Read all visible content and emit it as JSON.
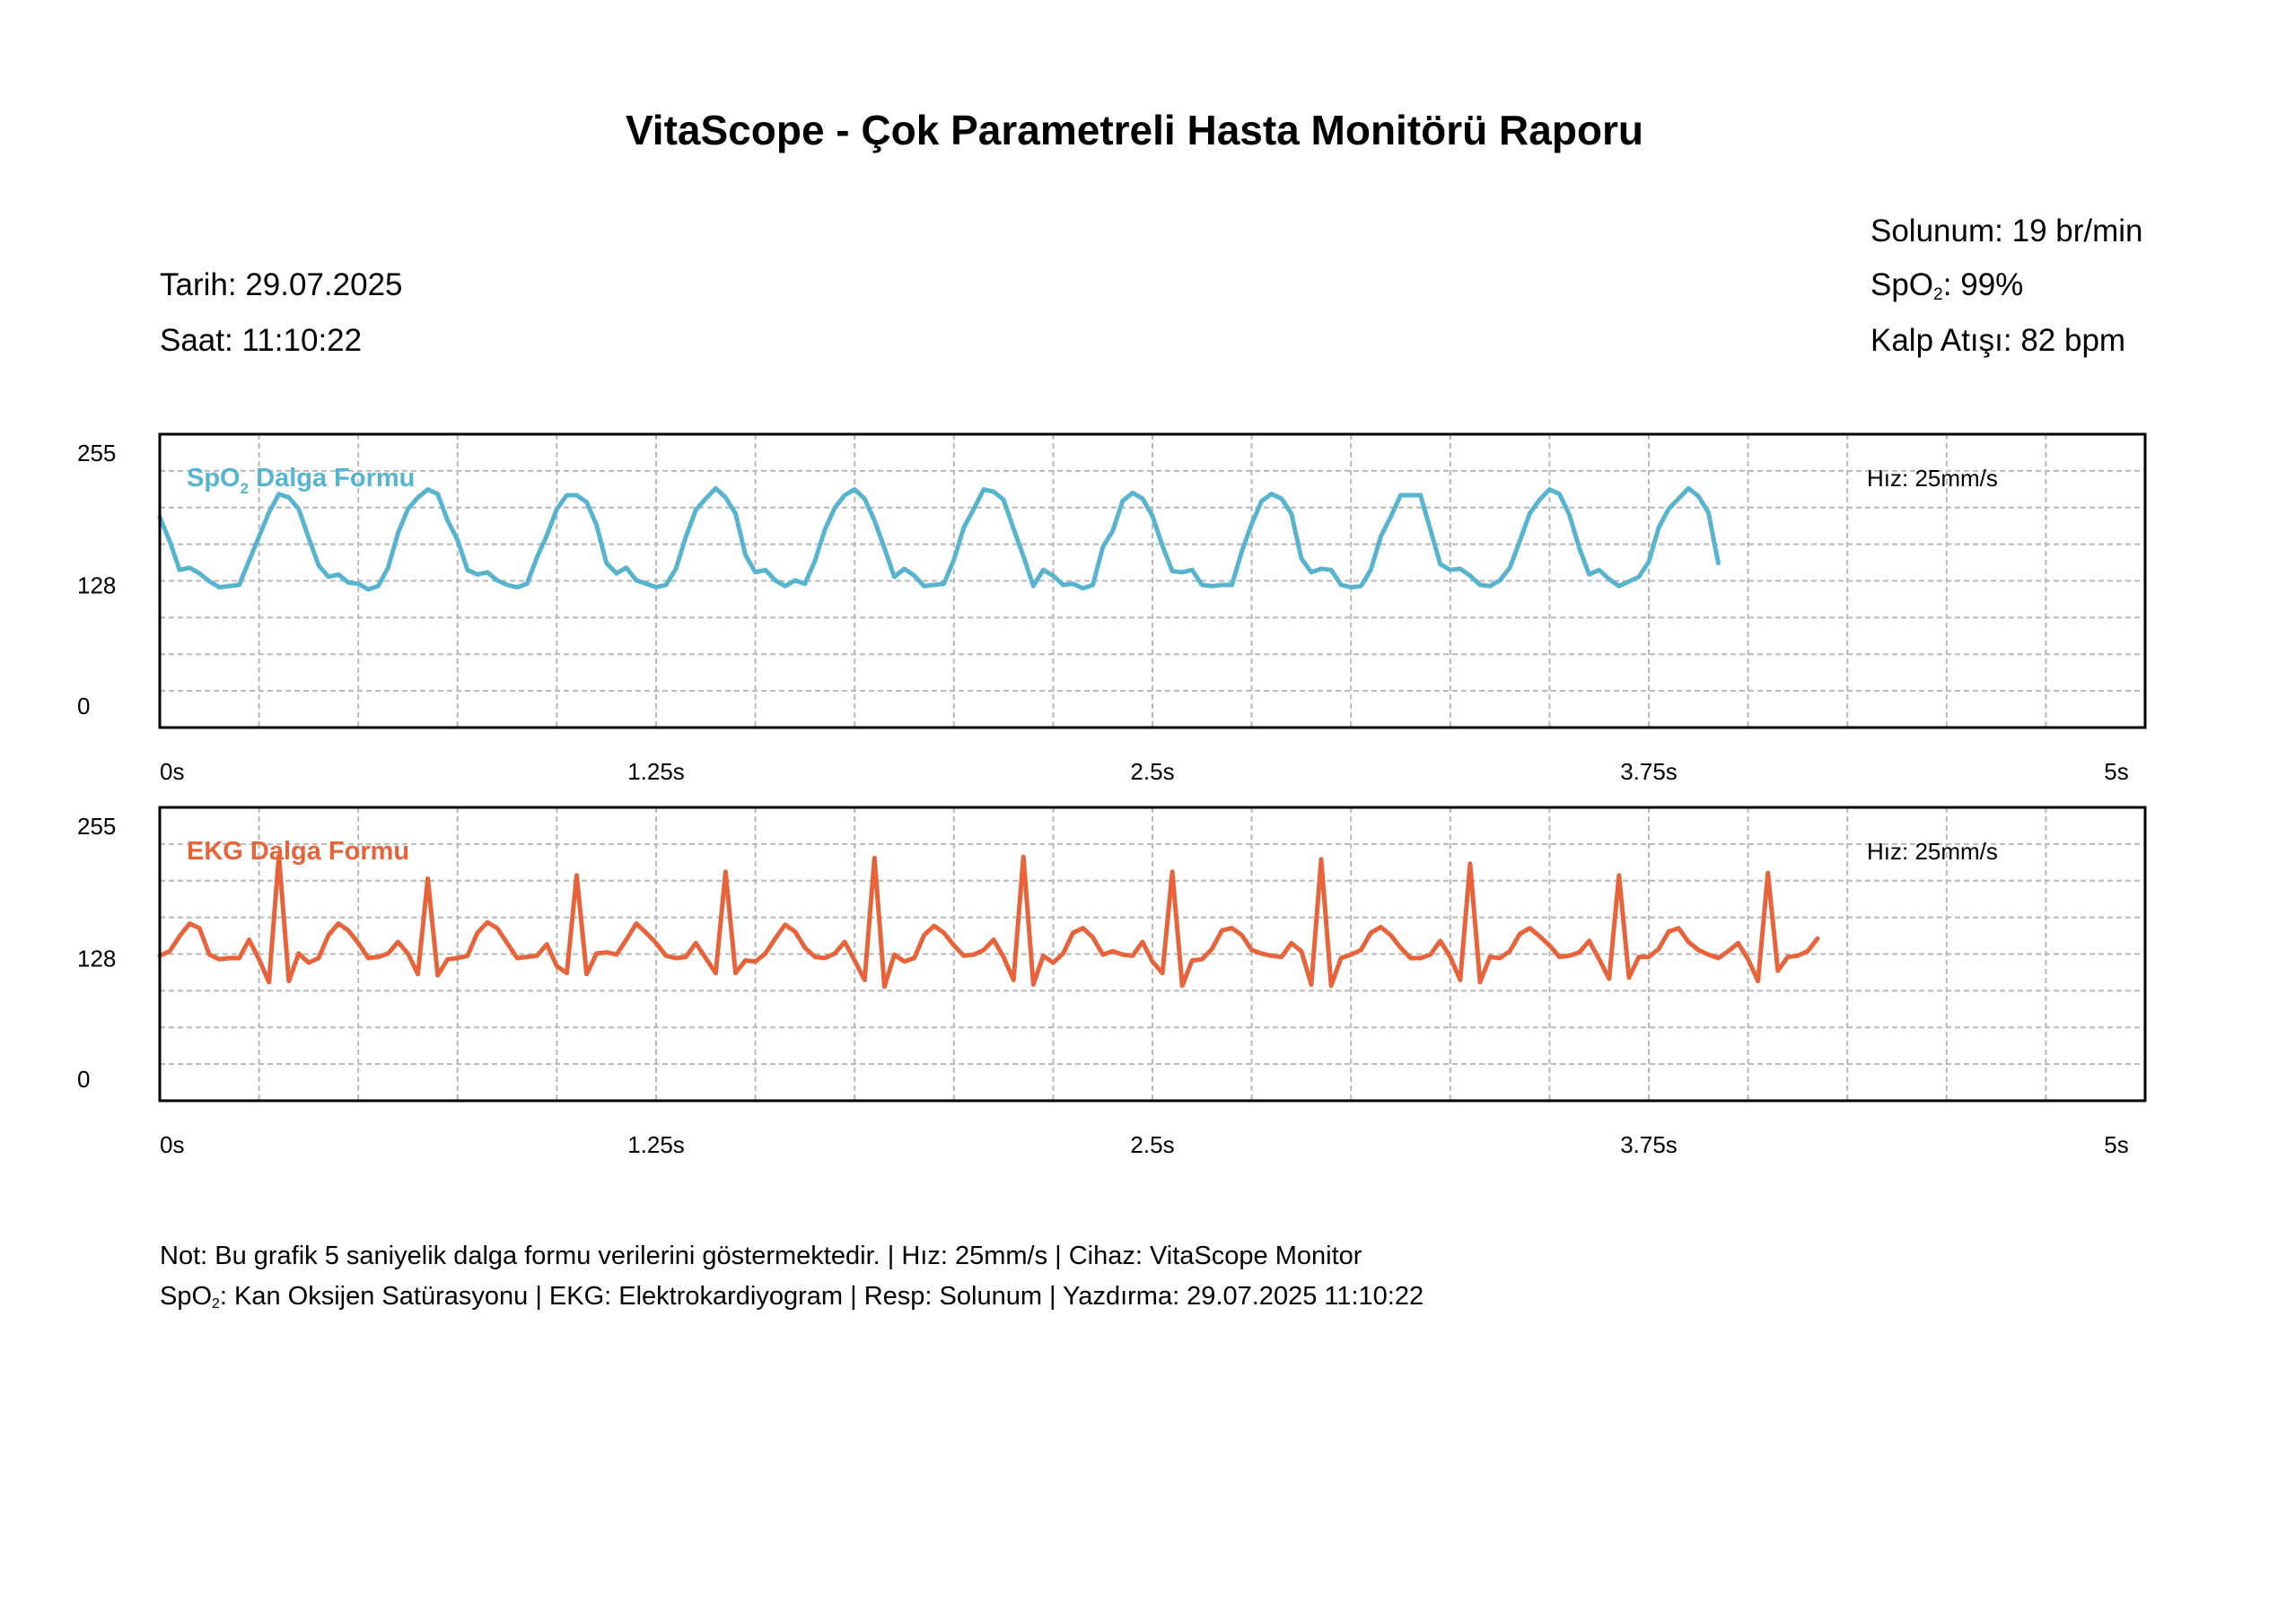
{
  "title": "VitaScope - Çok Parametreli Hasta Monitörü Raporu",
  "info_left": {
    "date_label": "Tarih:",
    "date": "29.07.2025",
    "time_label": "Saat:",
    "time": "11:10:22"
  },
  "info_right": {
    "resp_label": "Solunum:",
    "resp_value": "19 br/min",
    "spo2_prefix": "SpO",
    "spo2_sub": "2",
    "spo2_suffix": ":",
    "spo2_value": "99%",
    "hr_label": "Kalp Atışı:",
    "hr_value": "82 bpm"
  },
  "colors": {
    "spo2": "#56b4cf",
    "ekg": "#e8633a",
    "grid": "#b8b8b8",
    "frame": "#000000"
  },
  "chart_data": [
    {
      "type": "line",
      "name": "spo2",
      "title_prefix": "SpO",
      "title_sub": "2",
      "title_suffix": " Dalga Formu",
      "speed_label": "Hız: 25mm/s",
      "xlim": [
        0,
        5
      ],
      "ylim": [
        0,
        255
      ],
      "yticks": [
        0,
        128,
        255
      ],
      "xticks": [
        {
          "value": 0,
          "label": "0s"
        },
        {
          "value": 1.25,
          "label": "1.25s"
        },
        {
          "value": 2.5,
          "label": "2.5s"
        },
        {
          "value": 3.75,
          "label": "3.75s"
        },
        {
          "value": 5,
          "label": "5s"
        }
      ],
      "grid": true,
      "sample_interval": 0.025,
      "values": [
        183,
        162,
        137,
        139,
        134,
        127,
        122,
        123,
        124,
        145,
        166,
        187,
        203,
        200,
        190,
        165,
        141,
        131,
        133,
        126,
        125,
        120,
        123,
        139,
        169,
        190,
        200,
        207,
        203,
        180,
        163,
        137,
        133,
        135,
        128,
        124,
        122,
        125,
        148,
        167,
        190,
        202,
        202,
        196,
        176,
        143,
        134,
        139,
        128,
        125,
        122,
        124,
        138,
        166,
        189,
        199,
        208,
        200,
        186,
        150,
        135,
        137,
        128,
        123,
        128,
        125,
        145,
        172,
        191,
        202,
        207,
        199,
        180,
        156,
        131,
        138,
        132,
        123,
        124,
        125,
        146,
        174,
        190,
        207,
        205,
        198,
        173,
        149,
        123,
        137,
        132,
        124,
        125,
        121,
        124,
        157,
        171,
        197,
        204,
        199,
        184,
        158,
        136,
        135,
        137,
        124,
        123,
        124,
        124,
        153,
        177,
        197,
        203,
        199,
        186,
        147,
        135,
        138,
        137,
        124,
        122,
        123,
        137,
        166,
        183,
        202,
        202,
        202,
        172,
        142,
        137,
        138,
        132,
        124,
        123,
        128,
        139,
        162,
        186,
        198,
        207,
        203,
        185,
        156,
        133,
        137,
        129,
        123,
        127,
        131,
        144,
        174,
        190,
        199,
        208,
        201,
        187,
        143
      ]
    },
    {
      "type": "line",
      "name": "ekg",
      "title": "EKG Dalga Formu",
      "speed_label": "Hız: 25mm/s",
      "xlim": [
        0,
        5
      ],
      "ylim": [
        0,
        255
      ],
      "yticks": [
        0,
        128,
        255
      ],
      "xticks": [
        {
          "value": 0,
          "label": "0s"
        },
        {
          "value": 1.25,
          "label": "1.25s"
        },
        {
          "value": 2.5,
          "label": "2.5s"
        },
        {
          "value": 3.75,
          "label": "3.75s"
        },
        {
          "value": 5,
          "label": "5s"
        }
      ],
      "grid": true,
      "sample_interval": 0.025,
      "values": [
        126,
        130,
        143,
        154,
        150,
        127,
        123,
        124,
        124,
        140,
        123,
        103,
        213,
        104,
        128,
        120,
        124,
        144,
        154,
        148,
        137,
        124,
        125,
        128,
        138,
        128,
        110,
        193,
        109,
        123,
        124,
        126,
        146,
        155,
        150,
        137,
        124,
        125,
        126,
        136,
        117,
        111,
        196,
        110,
        128,
        129,
        127,
        140,
        154,
        146,
        137,
        126,
        124,
        125,
        137,
        124,
        111,
        199,
        111,
        122,
        121,
        128,
        141,
        153,
        147,
        133,
        125,
        124,
        128,
        138,
        122,
        105,
        211,
        99,
        127,
        121,
        124,
        144,
        152,
        146,
        135,
        126,
        127,
        131,
        140,
        125,
        105,
        212,
        101,
        126,
        120,
        128,
        146,
        150,
        142,
        127,
        130,
        127,
        126,
        138,
        121,
        111,
        199,
        100,
        122,
        123,
        132,
        148,
        150,
        144,
        131,
        128,
        126,
        125,
        137,
        130,
        101,
        210,
        100,
        124,
        127,
        131,
        146,
        151,
        144,
        133,
        124,
        124,
        127,
        139,
        125,
        105,
        206,
        103,
        125,
        124,
        130,
        145,
        150,
        143,
        135,
        125,
        126,
        129,
        139,
        123,
        106,
        196,
        107,
        125,
        125,
        132,
        147,
        150,
        138,
        131,
        127,
        124,
        130,
        137,
        123,
        104,
        198,
        113,
        125,
        126,
        130,
        141
      ]
    }
  ],
  "footer": {
    "line1": "Not: Bu grafik 5 saniyelik dalga formu verilerini göstermektedir. | Hız: 25mm/s | Cihaz: VitaScope Monitor",
    "line2_prefix": "SpO",
    "line2_sub": "2",
    "line2_rest": ": Kan Oksijen Satürasyonu | EKG: Elektrokardiyogram | Resp: Solunum | Yazdırma: 29.07.2025 11:10:22"
  }
}
